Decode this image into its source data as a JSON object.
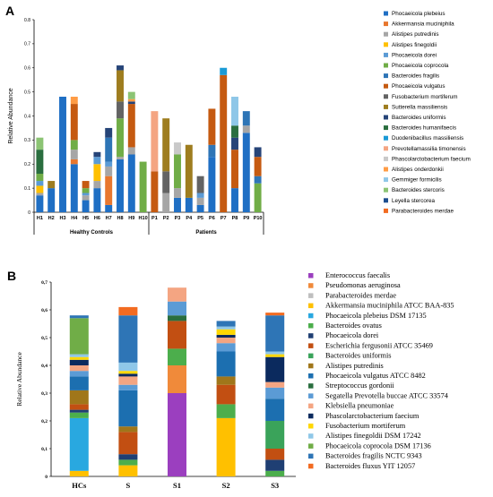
{
  "chart_data": [
    {
      "type": "bar",
      "stacked": true,
      "panel_label": "A",
      "ylabel": "Relative Abundance",
      "ylim": [
        0,
        0.8
      ],
      "yticks": [
        "0",
        "0.1",
        "0.2",
        "0.3",
        "0.4",
        "0.5",
        "0.6",
        "0.7",
        "0.8"
      ],
      "categories": [
        "H1",
        "H2",
        "H3",
        "H4",
        "H5",
        "H6",
        "H7",
        "H8",
        "H9",
        "H10",
        "P1",
        "P2",
        "P3",
        "P4",
        "P5",
        "P6",
        "P7",
        "P8",
        "P9",
        "P10"
      ],
      "groups": [
        {
          "label": "Healthy Controls",
          "from": 0,
          "to": 9
        },
        {
          "label": "Patients",
          "from": 10,
          "to": 19
        }
      ],
      "legend_position": "right",
      "series": [
        {
          "name": "Phocaeicola plebeius",
          "color": "#1f6fc4",
          "values": [
            0.07,
            0.1,
            0.48,
            0.2,
            0.05,
            0.1,
            0.03,
            0.22,
            0.24,
            0.0,
            0.0,
            0.0,
            0.06,
            0.06,
            0.03,
            0.23,
            0.0,
            0.1,
            0.33,
            0.0
          ]
        },
        {
          "name": "Akkermansia muciniphila",
          "color": "#e8772e",
          "values": [
            0.0,
            0.0,
            0.0,
            0.02,
            0.0,
            0.0,
            0.12,
            0.0,
            0.0,
            0.0,
            0.0,
            0.0,
            0.0,
            0.0,
            0.0,
            0.0,
            0.0,
            0.0,
            0.0,
            0.0
          ]
        },
        {
          "name": "Alistipes putredinis",
          "color": "#a6a6a6",
          "values": [
            0.01,
            0.0,
            0.0,
            0.04,
            0.02,
            0.03,
            0.04,
            0.01,
            0.03,
            0.0,
            0.0,
            0.08,
            0.04,
            0.0,
            0.03,
            0.0,
            0.0,
            0.0,
            0.03,
            0.0
          ]
        },
        {
          "name": "Alistipes finegoldii",
          "color": "#ffc000",
          "values": [
            0.03,
            0.0,
            0.0,
            0.0,
            0.0,
            0.07,
            0.0,
            0.0,
            0.0,
            0.0,
            0.0,
            0.0,
            0.0,
            0.0,
            0.0,
            0.0,
            0.0,
            0.0,
            0.0,
            0.0
          ]
        },
        {
          "name": "Phocaeicola dorei",
          "color": "#5b9bd5",
          "values": [
            0.02,
            0.0,
            0.0,
            0.0,
            0.01,
            0.03,
            0.02,
            0.0,
            0.0,
            0.0,
            0.0,
            0.0,
            0.0,
            0.0,
            0.02,
            0.0,
            0.0,
            0.0,
            0.0,
            0.0
          ]
        },
        {
          "name": "Phocaeicola coprocola",
          "color": "#70ad47",
          "values": [
            0.03,
            0.0,
            0.0,
            0.04,
            0.02,
            0.0,
            0.0,
            0.16,
            0.0,
            0.21,
            0.0,
            0.0,
            0.14,
            0.0,
            0.0,
            0.0,
            0.0,
            0.0,
            0.0,
            0.12
          ]
        },
        {
          "name": "Bacteroides fragilis",
          "color": "#2e75b6",
          "values": [
            0.0,
            0.0,
            0.0,
            0.0,
            0.0,
            0.0,
            0.1,
            0.0,
            0.0,
            0.0,
            0.0,
            0.0,
            0.0,
            0.0,
            0.0,
            0.05,
            0.0,
            0.0,
            0.06,
            0.03
          ]
        },
        {
          "name": "Phocaeicola vulgatus",
          "color": "#c55a11",
          "values": [
            0.0,
            0.0,
            0.0,
            0.15,
            0.03,
            0.0,
            0.0,
            0.0,
            0.18,
            0.0,
            0.17,
            0.0,
            0.0,
            0.0,
            0.0,
            0.15,
            0.57,
            0.16,
            0.0,
            0.08
          ]
        },
        {
          "name": "Fusobacterium mortiferum",
          "color": "#636363",
          "values": [
            0.0,
            0.0,
            0.0,
            0.0,
            0.0,
            0.0,
            0.0,
            0.07,
            0.0,
            0.0,
            0.0,
            0.09,
            0.0,
            0.0,
            0.07,
            0.0,
            0.0,
            0.0,
            0.0,
            0.0
          ]
        },
        {
          "name": "Sutterella massiliensis",
          "color": "#9e7d1f",
          "values": [
            0.0,
            0.03,
            0.0,
            0.0,
            0.0,
            0.0,
            0.0,
            0.13,
            0.0,
            0.0,
            0.0,
            0.22,
            0.0,
            0.22,
            0.0,
            0.0,
            0.0,
            0.0,
            0.0,
            0.0
          ]
        },
        {
          "name": "Bacteroides uniformis",
          "color": "#264478",
          "values": [
            0.0,
            0.0,
            0.0,
            0.0,
            0.0,
            0.02,
            0.04,
            0.02,
            0.01,
            0.0,
            0.0,
            0.0,
            0.0,
            0.0,
            0.0,
            0.0,
            0.0,
            0.05,
            0.0,
            0.04
          ]
        },
        {
          "name": "Bacteroides humanifaecis",
          "color": "#2a6e3f",
          "values": [
            0.1,
            0.0,
            0.0,
            0.0,
            0.0,
            0.0,
            0.0,
            0.0,
            0.0,
            0.0,
            0.0,
            0.0,
            0.0,
            0.0,
            0.0,
            0.0,
            0.0,
            0.05,
            0.0,
            0.0
          ]
        },
        {
          "name": "Duodenibacillus massiliensis",
          "color": "#1a9ad6",
          "values": [
            0.0,
            0.0,
            0.0,
            0.0,
            0.0,
            0.0,
            0.0,
            0.0,
            0.0,
            0.0,
            0.0,
            0.0,
            0.0,
            0.0,
            0.0,
            0.0,
            0.03,
            0.0,
            0.0,
            0.0
          ]
        },
        {
          "name": "Prevotellamassilia timonensis",
          "color": "#f4a582",
          "values": [
            0.0,
            0.0,
            0.0,
            0.0,
            0.0,
            0.0,
            0.0,
            0.0,
            0.0,
            0.0,
            0.25,
            0.0,
            0.0,
            0.0,
            0.0,
            0.0,
            0.0,
            0.0,
            0.0,
            0.0
          ]
        },
        {
          "name": "Phascolarctobacterium faecium",
          "color": "#c9c9c9",
          "values": [
            0.0,
            0.0,
            0.0,
            0.0,
            0.0,
            0.0,
            0.0,
            0.0,
            0.0,
            0.0,
            0.0,
            0.0,
            0.05,
            0.0,
            0.0,
            0.0,
            0.0,
            0.0,
            0.0,
            0.0
          ]
        },
        {
          "name": "Alistipes onderdonkii",
          "color": "#ff9c45",
          "values": [
            0.0,
            0.0,
            0.0,
            0.03,
            0.0,
            0.0,
            0.0,
            0.0,
            0.01,
            0.0,
            0.0,
            0.0,
            0.0,
            0.0,
            0.0,
            0.0,
            0.0,
            0.0,
            0.0,
            0.0
          ]
        },
        {
          "name": "Gemmiger formicilis",
          "color": "#8fc7e8",
          "values": [
            0.0,
            0.0,
            0.0,
            0.0,
            0.0,
            0.0,
            0.0,
            0.0,
            0.0,
            0.0,
            0.0,
            0.0,
            0.0,
            0.0,
            0.0,
            0.0,
            0.0,
            0.12,
            0.0,
            0.0
          ]
        },
        {
          "name": "Bacteroides stercoris",
          "color": "#8cc474",
          "values": [
            0.05,
            0.0,
            0.0,
            0.0,
            0.0,
            0.0,
            0.0,
            0.0,
            0.03,
            0.0,
            0.0,
            0.0,
            0.0,
            0.0,
            0.0,
            0.0,
            0.0,
            0.0,
            0.0,
            0.0
          ]
        },
        {
          "name": "Leyella stercorea",
          "color": "#1d4e8f",
          "values": [
            0.0,
            0.0,
            0.0,
            0.0,
            0.0,
            0.0,
            0.0,
            0.0,
            0.0,
            0.0,
            0.0,
            0.0,
            0.0,
            0.0,
            0.0,
            0.0,
            0.0,
            0.0,
            0.0,
            0.0
          ]
        },
        {
          "name": "Parabacteroides merdae",
          "color": "#f26b21",
          "values": [
            0.0,
            0.0,
            0.0,
            0.0,
            0.0,
            0.0,
            0.0,
            0.0,
            0.0,
            0.0,
            0.0,
            0.0,
            0.0,
            0.0,
            0.0,
            0.0,
            0.0,
            0.0,
            0.0,
            0.0
          ]
        }
      ]
    },
    {
      "type": "bar",
      "stacked": true,
      "panel_label": "B",
      "ylabel": "Relative Abundance",
      "ylim": [
        0,
        0.7
      ],
      "yticks": [
        "0",
        "0,1",
        "0,2",
        "0,3",
        "0,4",
        "0,5",
        "0,6",
        "0,7"
      ],
      "categories": [
        "HCs",
        "S",
        "S1",
        "S2",
        "S3"
      ],
      "legend_position": "right",
      "series": [
        {
          "name": "Enterococcus   faecalis",
          "color": "#9b3fbf",
          "values": [
            0.0,
            0.0,
            0.3,
            0.0,
            0.0
          ]
        },
        {
          "name": "Pseudomonas   aeruginosa",
          "color": "#f08a3a",
          "values": [
            0.0,
            0.0,
            0.1,
            0.0,
            0.0
          ]
        },
        {
          "name": "Parabacteroides   merdae",
          "color": "#bfbfbf",
          "values": [
            0.0,
            0.0,
            0.0,
            0.0,
            0.0
          ]
        },
        {
          "name": "Akkermansia   muciniphila ATCC BAA-835",
          "color": "#ffc000",
          "values": [
            0.02,
            0.04,
            0.0,
            0.21,
            0.0
          ]
        },
        {
          "name": "Phocaeicola   plebeius DSM 17135",
          "color": "#29a8e0",
          "values": [
            0.19,
            0.0,
            0.0,
            0.0,
            0.0
          ]
        },
        {
          "name": "Bacteroides   ovatus",
          "color": "#4cae4c",
          "values": [
            0.02,
            0.02,
            0.06,
            0.05,
            0.02
          ]
        },
        {
          "name": "Phocaeicola   dorei",
          "color": "#1f3f73",
          "values": [
            0.01,
            0.02,
            0.0,
            0.0,
            0.04
          ]
        },
        {
          "name": "Escherichia   fergusonii ATCC 35469",
          "color": "#c24f12",
          "values": [
            0.02,
            0.08,
            0.1,
            0.07,
            0.04
          ]
        },
        {
          "name": "Bacteroides   uniformis",
          "color": "#3aa35a",
          "values": [
            0.0,
            0.0,
            0.0,
            0.0,
            0.1
          ]
        },
        {
          "name": "Alistipes   putredinis",
          "color": "#a0761a",
          "values": [
            0.05,
            0.02,
            0.0,
            0.03,
            0.0
          ]
        },
        {
          "name": "Phocaeicola   vulgatus ATCC 8482",
          "color": "#1c6fb0",
          "values": [
            0.05,
            0.13,
            0.0,
            0.09,
            0.08
          ]
        },
        {
          "name": "Streptococcus   gordonii",
          "color": "#2a6e3f",
          "values": [
            0.0,
            0.0,
            0.02,
            0.0,
            0.0
          ]
        },
        {
          "name": "Segatella   Prevotella buccae ATCC 33574",
          "color": "#5b9bd5",
          "values": [
            0.02,
            0.02,
            0.05,
            0.03,
            0.04
          ]
        },
        {
          "name": "Klebsiella   pneumoniae",
          "color": "#f4a582",
          "values": [
            0.02,
            0.03,
            0.05,
            0.02,
            0.02
          ]
        },
        {
          "name": "Phascolarctobacterium   faecium",
          "color": "#0b2a5e",
          "values": [
            0.02,
            0.01,
            0.0,
            0.01,
            0.09
          ]
        },
        {
          "name": "Fusobacterium   mortiferum",
          "color": "#ffd700",
          "values": [
            0.01,
            0.01,
            0.0,
            0.02,
            0.01
          ]
        },
        {
          "name": "Alistipes   finegoldii DSM 17242",
          "color": "#8fc7e8",
          "values": [
            0.01,
            0.03,
            0.0,
            0.01,
            0.01
          ]
        },
        {
          "name": "Phocaeicola   coprocola DSM 17136",
          "color": "#70ad47",
          "values": [
            0.13,
            0.0,
            0.0,
            0.0,
            0.0
          ]
        },
        {
          "name": "Bacteroides   fragilis NCTC 9343",
          "color": "#2e75b6",
          "values": [
            0.01,
            0.17,
            0.0,
            0.02,
            0.13
          ]
        },
        {
          "name": "Bacteroides   fluxus YIT 12057",
          "color": "#f26b21",
          "values": [
            0.0,
            0.03,
            0.0,
            0.0,
            0.01
          ]
        }
      ]
    }
  ]
}
